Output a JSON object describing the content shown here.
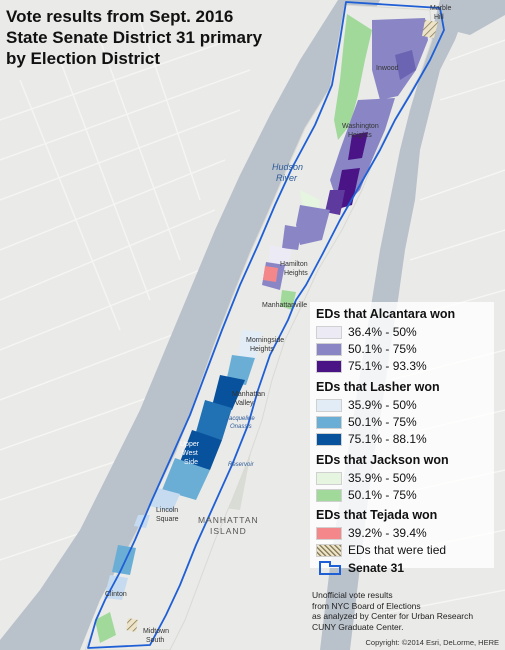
{
  "title": {
    "line1": "Vote results from Sept. 2016",
    "line2": "State Senate District 31 primary",
    "line3": "by Election District"
  },
  "legend": {
    "groups": [
      {
        "heading": "EDs that Alcantara won",
        "items": [
          {
            "label": "36.4% - 50%",
            "color": "#eceaf5"
          },
          {
            "label": "50.1% - 75%",
            "color": "#8a86c6"
          },
          {
            "label": "75.1% - 93.3%",
            "color": "#4a1486"
          }
        ]
      },
      {
        "heading": "EDs that Lasher won",
        "items": [
          {
            "label": "35.9% - 50%",
            "color": "#e1ecf7"
          },
          {
            "label": "50.1% - 75%",
            "color": "#6aaed6"
          },
          {
            "label": "75.1% - 88.1%",
            "color": "#08519c"
          }
        ]
      },
      {
        "heading": "EDs that Jackson won",
        "items": [
          {
            "label": "35.9% - 50%",
            "color": "#e5f5e0"
          },
          {
            "label": "50.1% - 75%",
            "color": "#a1d99b"
          }
        ]
      },
      {
        "heading": "EDs that Tejada won",
        "items": [
          {
            "label": "39.2% - 39.4%",
            "color": "#f4878a"
          }
        ]
      }
    ],
    "tied_label": "EDs that were tied",
    "district_label": "Senate 31"
  },
  "note": {
    "line1": "Unofficial vote results",
    "line2": "from NYC Board of Elections",
    "line3": "as analyzed by Center for Urban Research",
    "line4": "CUNY Graduate Center."
  },
  "copyright": "Copyright: ©2014 Esri, DeLorme, HERE",
  "map_labels": {
    "hudson": "Hudson",
    "river": "River",
    "inwood": "Inwood",
    "washington": "Washington",
    "heights": "Heights",
    "hamilton": "Hamilton",
    "hamilton_heights": "Heights",
    "manhattanville": "Manhattanville",
    "morningside": "Morningside",
    "morningside_heights": "Heights",
    "manhattan_valley_1": "Manhattan",
    "manhattan_valley_2": "Valley",
    "upper_west_1": "Upper",
    "upper_west_2": "West",
    "upper_west_3": "Side",
    "reservoir_1": "Jacqueline",
    "reservoir_2": "Onassis",
    "reservoir_3": "Reservoir",
    "lincoln": "Lincoln",
    "square": "Square",
    "manhattan": "MANHATTAN",
    "island": "ISLAND",
    "clinton": "Clinton",
    "midtown_1": "Midtown",
    "midtown_2": "South",
    "marble_1": "Marble",
    "marble_2": "Hill"
  },
  "colors": {
    "water": "#b9c1cb",
    "land": "#eaeae8",
    "park": "#d9dcd4",
    "district_outline": "#1f5fd6"
  }
}
